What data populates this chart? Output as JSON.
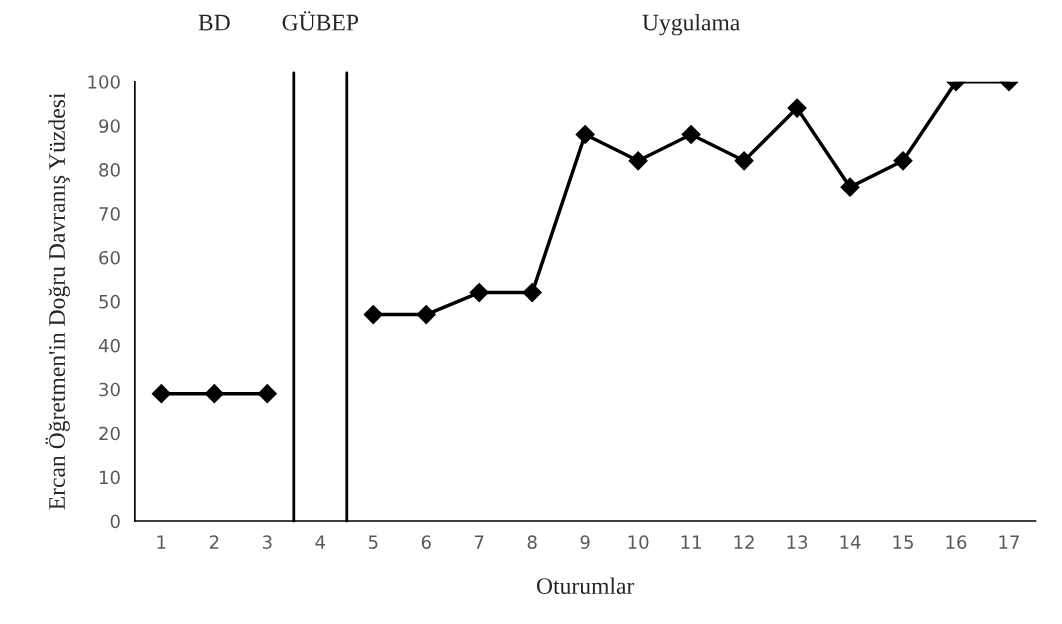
{
  "chart_data": {
    "type": "line",
    "xlabel": "Oturumlar",
    "ylabel": "Ercan Öğretmen'in Doğru Davranış Yüzdesi",
    "x": [
      1,
      2,
      3,
      4,
      5,
      6,
      7,
      8,
      9,
      10,
      11,
      12,
      13,
      14,
      15,
      16,
      17
    ],
    "series": [
      {
        "color": "#000000",
        "values": [
          29,
          29,
          29,
          null,
          47,
          47,
          52,
          52,
          88,
          82,
          88,
          82,
          94,
          76,
          82,
          100,
          100
        ]
      }
    ],
    "xlim": [
      0.5,
      17.5
    ],
    "ylim": [
      0,
      100
    ],
    "xticks": [
      1,
      2,
      3,
      4,
      5,
      6,
      7,
      8,
      9,
      10,
      11,
      12,
      13,
      14,
      15,
      16,
      17
    ],
    "yticks": [
      0,
      10,
      20,
      30,
      40,
      50,
      60,
      70,
      80,
      90,
      100
    ],
    "ref_lines": [
      {
        "axis": "x",
        "value": 3.5,
        "color": "#000000"
      },
      {
        "axis": "x",
        "value": 4.5,
        "color": "#000000"
      }
    ],
    "annotations": [
      "BD",
      "GÜBEP",
      "Uygulama"
    ],
    "marker": "diamond",
    "line_style": "solid",
    "grid": false,
    "legend": false
  }
}
